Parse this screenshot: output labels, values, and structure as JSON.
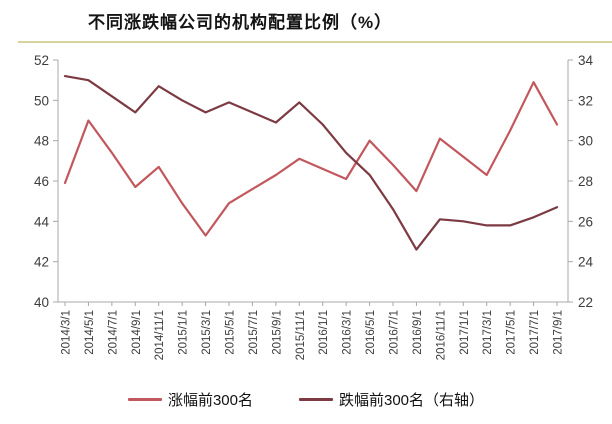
{
  "header": {
    "title": "不同涨跌幅公司的机构配置比例（%）",
    "rule_color": "#d8d29b"
  },
  "legend": {
    "items": [
      {
        "label": "涨幅前300名",
        "color": "#c2585e"
      },
      {
        "label": "跌幅前300名（右轴）",
        "color": "#7c3a42"
      }
    ]
  },
  "axis_style": {
    "line_color": "#a8a8a8",
    "label_color": "#3d3d3d"
  },
  "chart_data": {
    "type": "line",
    "title": "不同涨跌幅公司的机构配置比例（%）",
    "categories": [
      "2014/3/1",
      "2014/5/1",
      "2014/7/1",
      "2014/9/1",
      "2014/11/1",
      "2015/1/1",
      "2015/3/1",
      "2015/5/1",
      "2015/7/1",
      "2015/9/1",
      "2015/11/1",
      "2016/1/1",
      "2016/3/1",
      "2016/5/1",
      "2016/7/1",
      "2016/9/1",
      "2016/11/1",
      "2017/1/1",
      "2017/3/1",
      "2017/5/1",
      "2017/7/1",
      "2017/9/1"
    ],
    "series": [
      {
        "name": "涨幅前300名",
        "axis": "left",
        "color": "#c2585e",
        "values": [
          45.9,
          49.0,
          47.4,
          45.7,
          46.7,
          44.9,
          43.3,
          44.9,
          45.6,
          46.3,
          47.1,
          46.6,
          46.1,
          48.0,
          46.8,
          45.5,
          48.1,
          47.2,
          46.3,
          48.5,
          50.9,
          48.8
        ]
      },
      {
        "name": "跌幅前300名（右轴）",
        "axis": "right",
        "color": "#7c3a42",
        "values": [
          33.2,
          33.0,
          32.2,
          31.4,
          32.7,
          32.0,
          31.4,
          31.9,
          31.4,
          30.9,
          31.9,
          30.8,
          29.4,
          28.3,
          26.6,
          24.6,
          26.1,
          26.0,
          25.8,
          25.8,
          26.2,
          26.7
        ]
      }
    ],
    "left_axis": {
      "min": 40,
      "max": 52,
      "ticks": [
        52,
        50,
        48,
        46,
        44,
        42,
        40
      ]
    },
    "right_axis": {
      "min": 22,
      "max": 34,
      "ticks": [
        34,
        32,
        30,
        28,
        26,
        24,
        22
      ]
    },
    "grid": false,
    "legend_position": "bottom"
  }
}
